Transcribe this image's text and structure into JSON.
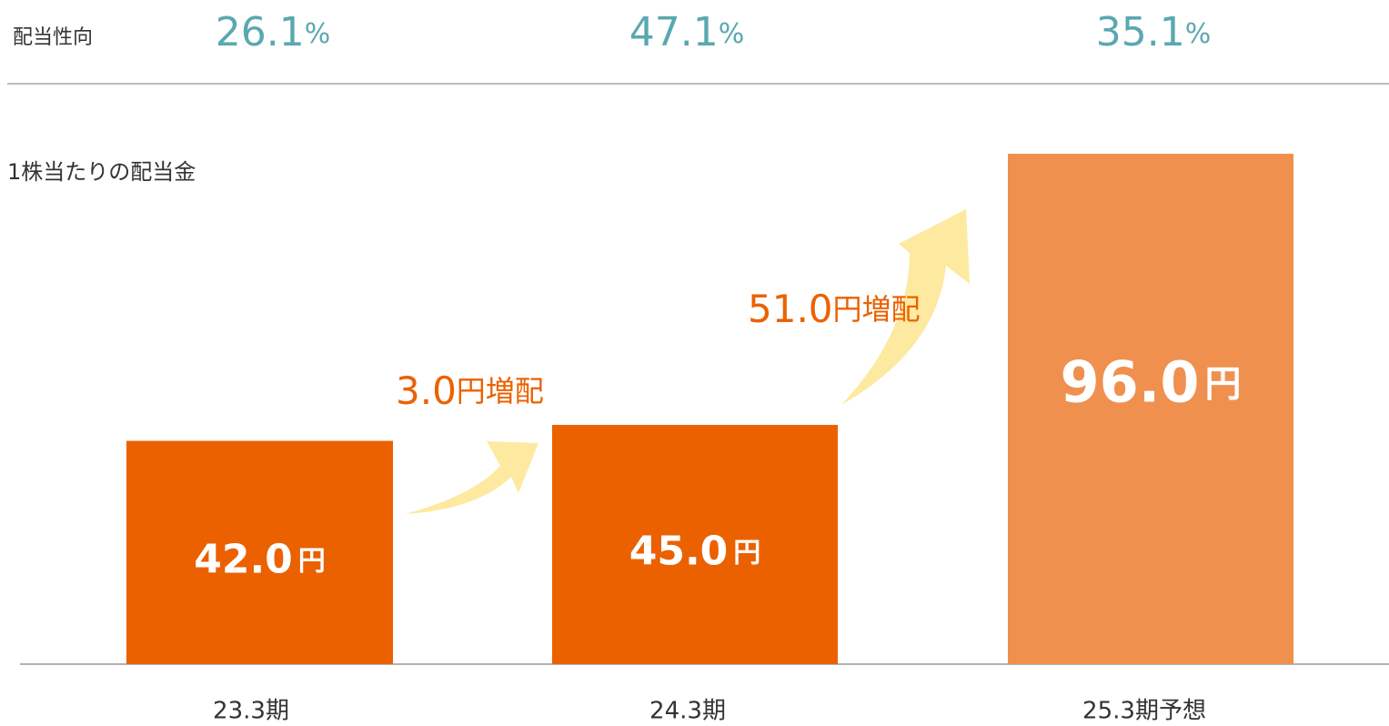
{
  "chart_data": {
    "type": "bar",
    "ratio_label": "配当性向",
    "payout_ratios": [
      26.1,
      47.1,
      35.1
    ],
    "percent_symbol": "%",
    "y_label": "1株当たりの配当金",
    "categories": [
      "23.3期",
      "24.3期",
      "25.3期予想"
    ],
    "values": [
      42,
      45,
      96
    ],
    "value_labels": [
      "42.0",
      "45.0",
      "96.0"
    ],
    "unit": "円",
    "colors": [
      "#eb6100",
      "#eb6100",
      "#f0904f"
    ],
    "annotations": [
      {
        "amount": "3.0",
        "text": "円増配"
      },
      {
        "amount": "51.0",
        "text": "円増配"
      }
    ]
  }
}
